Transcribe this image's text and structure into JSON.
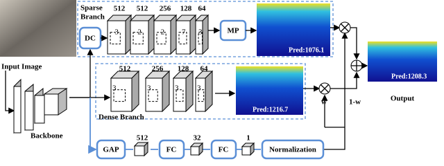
{
  "input": {
    "label": "Input Image"
  },
  "backbone": {
    "label": "Backbone"
  },
  "sparse_branch": {
    "label_line1": "Sparse",
    "label_line2": "Branch",
    "dc": "DC",
    "channels": [
      "512",
      "512",
      "256",
      "128",
      "64"
    ],
    "kernels": [
      "3",
      "2",
      "2",
      "7",
      "3"
    ],
    "mp": "MP",
    "pred": "Pred:1076.1"
  },
  "dense_branch": {
    "label": "Dense Branch",
    "channels": [
      "512",
      "256",
      "128",
      "64"
    ],
    "kernels": [
      "3",
      "3",
      "3",
      "3"
    ],
    "pred": "Pred:1216.7"
  },
  "gate": {
    "gap": "GAP",
    "c1": "512",
    "fc1": "FC",
    "c2": "32",
    "fc2": "FC",
    "c3": "1",
    "norm": "Normalization",
    "w": "w",
    "one_minus_w": "1-w"
  },
  "output": {
    "pred": "Pred:1208.3",
    "label": "Output"
  }
}
